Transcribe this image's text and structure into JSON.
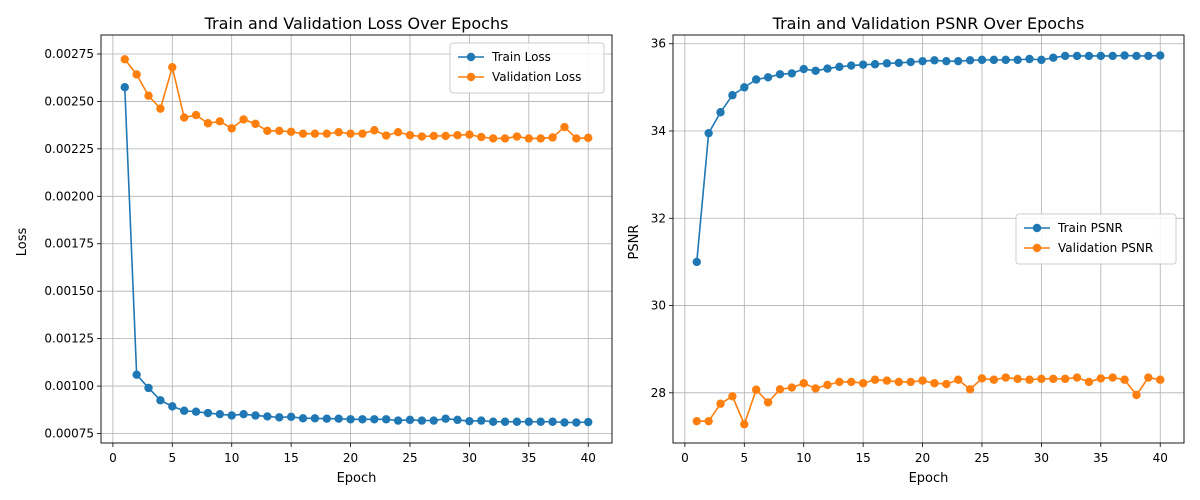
{
  "chart_data": [
    {
      "type": "line",
      "title": "Train and Validation Loss Over Epochs",
      "xlabel": "Epoch",
      "ylabel": "Loss",
      "xlim": [
        -1,
        42
      ],
      "ylim": [
        0.0007,
        0.00285
      ],
      "xticks": [
        0,
        5,
        10,
        15,
        20,
        25,
        30,
        35,
        40
      ],
      "xtick_labels": [
        "0",
        "5",
        "10",
        "15",
        "20",
        "25",
        "30",
        "35",
        "40"
      ],
      "yticks": [
        0.00075,
        0.001,
        0.00125,
        0.0015,
        0.00175,
        0.002,
        0.00225,
        0.0025,
        0.00275
      ],
      "ytick_labels": [
        "0.00075",
        "0.00100",
        "0.00125",
        "0.00150",
        "0.00175",
        "0.00200",
        "0.00225",
        "0.00250",
        "0.00275"
      ],
      "grid": true,
      "legend_position": "top-right",
      "x": [
        1,
        2,
        3,
        4,
        5,
        6,
        7,
        8,
        9,
        10,
        11,
        12,
        13,
        14,
        15,
        16,
        17,
        18,
        19,
        20,
        21,
        22,
        23,
        24,
        25,
        26,
        27,
        28,
        29,
        30,
        31,
        32,
        33,
        34,
        35,
        36,
        37,
        38,
        39,
        40
      ],
      "series": [
        {
          "name": "Train Loss",
          "color": "#1f77b4",
          "values": [
            0.002575,
            0.00106,
            0.00099,
            0.000925,
            0.000893,
            0.00087,
            0.000865,
            0.000858,
            0.000852,
            0.000845,
            0.000852,
            0.000845,
            0.00084,
            0.000835,
            0.000838,
            0.00083,
            0.00083,
            0.000828,
            0.000828,
            0.000825,
            0.000825,
            0.000825,
            0.000825,
            0.000818,
            0.000822,
            0.000818,
            0.000818,
            0.000828,
            0.000822,
            0.000815,
            0.000818,
            0.000812,
            0.000812,
            0.000812,
            0.000812,
            0.000812,
            0.000812,
            0.000808,
            0.000808,
            0.00081
          ]
        },
        {
          "name": "Validation Loss",
          "color": "#ff7f0e",
          "values": [
            0.002722,
            0.002642,
            0.00253,
            0.002462,
            0.00268,
            0.002415,
            0.002428,
            0.002385,
            0.002395,
            0.002358,
            0.002405,
            0.002382,
            0.002345,
            0.002345,
            0.00234,
            0.00233,
            0.00233,
            0.00233,
            0.002338,
            0.00233,
            0.00233,
            0.002348,
            0.00232,
            0.002338,
            0.002322,
            0.002315,
            0.002318,
            0.002318,
            0.002322,
            0.002325,
            0.002312,
            0.002305,
            0.002305,
            0.002315,
            0.002305,
            0.002305,
            0.00231,
            0.002365,
            0.002305,
            0.002308
          ]
        }
      ]
    },
    {
      "type": "line",
      "title": "Train and Validation PSNR Over Epochs",
      "xlabel": "Epoch",
      "ylabel": "PSNR",
      "xlim": [
        -1,
        42
      ],
      "ylim": [
        26.85,
        36.2
      ],
      "xticks": [
        0,
        5,
        10,
        15,
        20,
        25,
        30,
        35,
        40
      ],
      "xtick_labels": [
        "0",
        "5",
        "10",
        "15",
        "20",
        "25",
        "30",
        "35",
        "40"
      ],
      "yticks": [
        28,
        30,
        32,
        34,
        36
      ],
      "ytick_labels": [
        "28",
        "30",
        "32",
        "34",
        "36"
      ],
      "grid": true,
      "legend_position": "center-right",
      "x": [
        1,
        2,
        3,
        4,
        5,
        6,
        7,
        8,
        9,
        10,
        11,
        12,
        13,
        14,
        15,
        16,
        17,
        18,
        19,
        20,
        21,
        22,
        23,
        24,
        25,
        26,
        27,
        28,
        29,
        30,
        31,
        32,
        33,
        34,
        35,
        36,
        37,
        38,
        39,
        40
      ],
      "series": [
        {
          "name": "Train PSNR",
          "color": "#1f77b4",
          "values": [
            31.0,
            33.95,
            34.43,
            34.82,
            35.0,
            35.18,
            35.23,
            35.3,
            35.32,
            35.42,
            35.38,
            35.43,
            35.47,
            35.5,
            35.52,
            35.53,
            35.55,
            35.56,
            35.58,
            35.6,
            35.62,
            35.6,
            35.6,
            35.62,
            35.63,
            35.63,
            35.63,
            35.63,
            35.65,
            35.63,
            35.68,
            35.72,
            35.72,
            35.72,
            35.72,
            35.72,
            35.73,
            35.72,
            35.72,
            35.73
          ]
        },
        {
          "name": "Validation PSNR",
          "color": "#ff7f0e",
          "values": [
            27.35,
            27.35,
            27.75,
            27.92,
            27.28,
            28.07,
            27.78,
            28.08,
            28.12,
            28.22,
            28.1,
            28.18,
            28.25,
            28.25,
            28.22,
            28.3,
            28.28,
            28.25,
            28.25,
            28.28,
            28.22,
            28.2,
            28.3,
            28.08,
            28.33,
            28.3,
            28.35,
            28.32,
            28.3,
            28.32,
            28.32,
            28.32,
            28.35,
            28.25,
            28.33,
            28.35,
            28.3,
            27.95,
            28.35,
            28.3
          ]
        }
      ]
    }
  ]
}
